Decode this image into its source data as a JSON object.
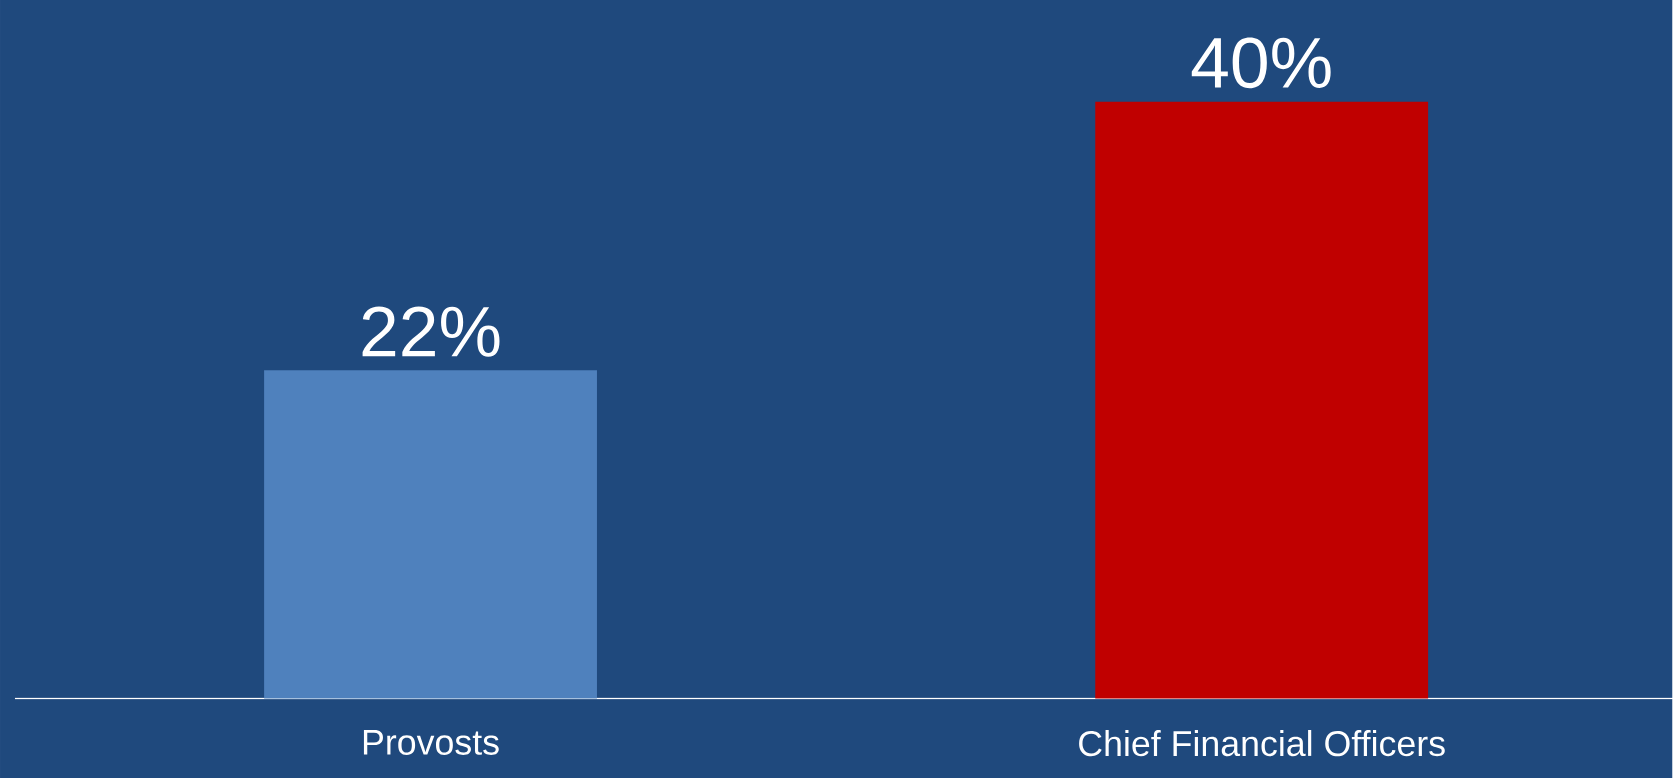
{
  "chart_data": {
    "type": "bar",
    "categories": [
      "Provosts",
      "Chief Financial Officers"
    ],
    "values": [
      22,
      40
    ],
    "colors": [
      "#4f81bd",
      "#c00000"
    ],
    "value_labels": [
      "22%",
      "40%"
    ]
  }
}
